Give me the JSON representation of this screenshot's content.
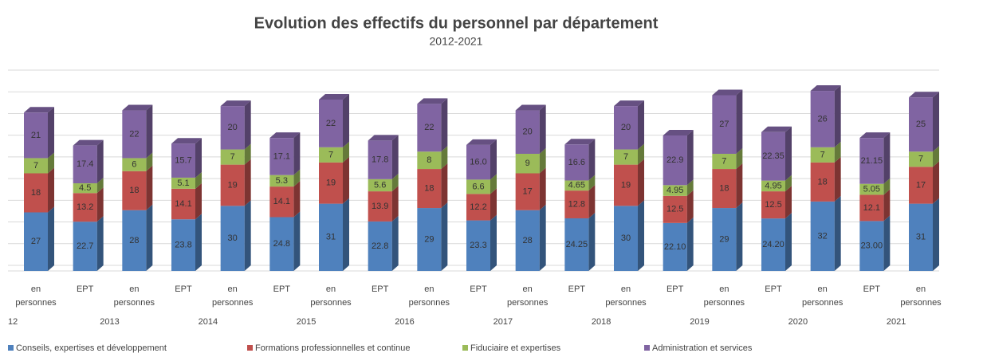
{
  "chart_data": {
    "type": "bar3d_stacked",
    "title": "Evolution des effectifs du personnel par département",
    "subtitle": "2012-2021",
    "categories": [
      "en personnes",
      "EPT",
      "en personnes",
      "EPT",
      "en personnes",
      "EPT",
      "en personnes",
      "EPT",
      "en personnes",
      "EPT",
      "en personnes",
      "EPT",
      "en personnes",
      "EPT",
      "en personnes",
      "EPT",
      "en personnes",
      "EPT",
      "en personnes"
    ],
    "years": [
      "12",
      "2013",
      "2014",
      "2015",
      "2016",
      "2017",
      "2018",
      "2019",
      "2020",
      "2021"
    ],
    "ylim": [
      0,
      90
    ],
    "yticks": [
      0,
      10,
      20,
      30,
      40,
      50,
      60,
      70,
      80,
      90
    ],
    "grid": true,
    "legend": "bottom",
    "series": [
      {
        "name": "Conseils, expertises et développement",
        "color": "#4f81bd",
        "values": [
          27,
          22.7,
          28,
          23.8,
          30,
          24.8,
          31,
          22.8,
          29,
          23.3,
          28,
          24.25,
          30,
          22.1,
          29,
          24.2,
          32,
          23,
          31
        ],
        "value_labels": [
          "27",
          "22.7",
          "28",
          "23.8",
          "30",
          "24.8",
          "31",
          "22.8",
          "29",
          "23.3",
          "28",
          "24.25",
          "30",
          "22.10",
          "29",
          "24.20",
          "32",
          "23.00",
          "31"
        ]
      },
      {
        "name": "Formations professionnelles et continue",
        "color": "#c0504d",
        "values": [
          18,
          13.2,
          18,
          14.1,
          19,
          14.1,
          19,
          13.9,
          18,
          12.2,
          17,
          12.8,
          19,
          12.5,
          18,
          12.5,
          18,
          12.1,
          17
        ],
        "value_labels": [
          "18",
          "13.2",
          "18",
          "14.1",
          "19",
          "14.1",
          "19",
          "13.9",
          "18",
          "12.2",
          "17",
          "12.8",
          "19",
          "12.5",
          "18",
          "12.5",
          "18",
          "12.1",
          "17"
        ]
      },
      {
        "name": "Fiduciaire et expertises",
        "color": "#9bbb59",
        "values": [
          7,
          4.5,
          6,
          5.1,
          7,
          5.3,
          7,
          5.6,
          8,
          6.6,
          9,
          4.65,
          7,
          4.95,
          7,
          4.95,
          7,
          5.05,
          7
        ],
        "value_labels": [
          "7",
          "4.5",
          "6",
          "5.1",
          "7",
          "5.3",
          "7",
          "5.6",
          "8",
          "6.6",
          "9",
          "4.65",
          "7",
          "4.95",
          "7",
          "4.95",
          "7",
          "5.05",
          "7"
        ]
      },
      {
        "name": "Administration et services",
        "color": "#8064a2",
        "values": [
          21,
          17.4,
          22,
          15.7,
          20,
          17.1,
          22,
          17.8,
          22,
          16,
          20,
          16.6,
          20,
          22.9,
          27,
          22.35,
          26,
          21.15,
          25
        ],
        "value_labels": [
          "21",
          "17.4",
          "22",
          "15.7",
          "20",
          "17.1",
          "22",
          "17.8",
          "22",
          "16.0",
          "20",
          "16.6",
          "20",
          "22.9",
          "27",
          "22.35",
          "26",
          "21.15",
          "25"
        ]
      }
    ]
  }
}
